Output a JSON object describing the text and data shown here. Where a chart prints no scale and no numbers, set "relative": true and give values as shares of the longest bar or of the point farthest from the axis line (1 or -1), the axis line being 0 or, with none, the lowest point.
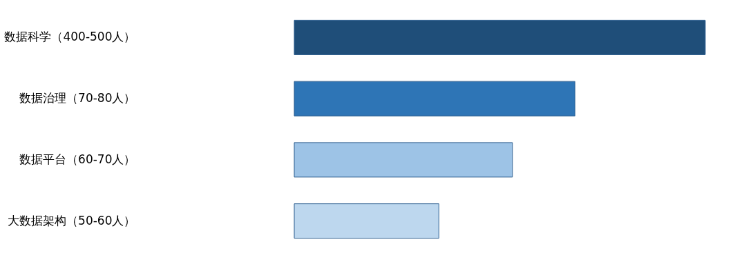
{
  "chart_data": {
    "type": "bar",
    "orientation": "horizontal",
    "relative": true,
    "categories": [
      "数据科学（400-500人）",
      "数据治理（70-80人）",
      "数据平台（60-70人）",
      "大数据架构（50-60人）"
    ],
    "values": [
      1,
      0.683,
      0.531,
      0.352
    ],
    "colors": [
      "#1f4e79",
      "#2e75b6",
      "#9dc3e6",
      "#bdd7ee"
    ]
  }
}
